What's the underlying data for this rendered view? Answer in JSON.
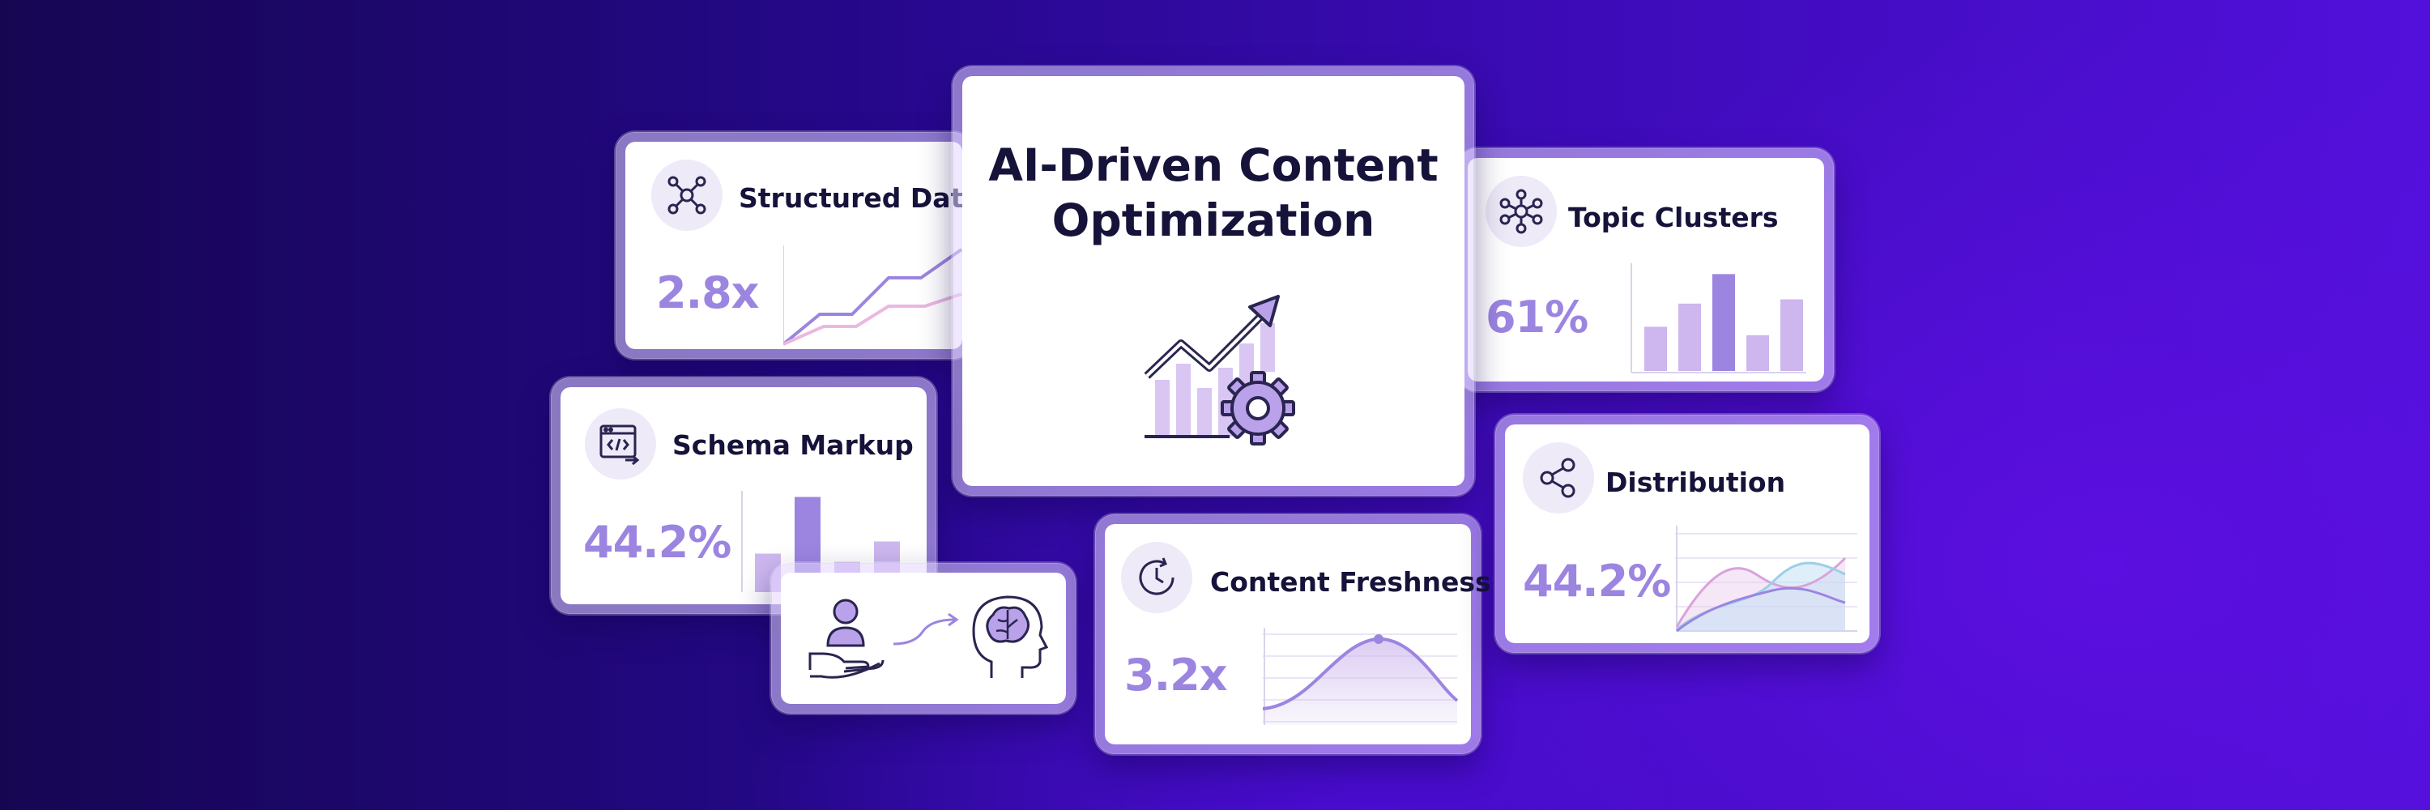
{
  "hero": {
    "title_line1": "AI-Driven Content",
    "title_line2": "Optimization",
    "icon": "growth-gear-icon"
  },
  "cards": {
    "structured_data": {
      "title": "Structured Data",
      "metric": "2.8x",
      "icon": "network-icon"
    },
    "topic_clusters": {
      "title": "Topic Clusters",
      "metric": "61%",
      "icon": "cluster-icon",
      "bars": [
        0.42,
        0.64,
        0.92,
        0.34,
        0.68
      ]
    },
    "schema_markup": {
      "title": "Schema Markup",
      "metric": "44.2%",
      "icon": "code-window-icon",
      "bars": [
        0.38,
        0.94,
        0.3,
        0.5
      ]
    },
    "distribution": {
      "title": "Distribution",
      "metric": "44.2%",
      "icon": "share-icon"
    },
    "content_freshness": {
      "title": "Content Freshness",
      "metric": "3.2x",
      "icon": "clock-icon"
    },
    "user_to_ai": {
      "icons": [
        "hand-user-icon",
        "arrow-icon",
        "brain-head-icon"
      ]
    }
  },
  "colors": {
    "accent": "#9c85e0",
    "accent_dark": "#7e63d6",
    "accent_light": "#cdb7ee",
    "text_dark": "#16133a"
  }
}
